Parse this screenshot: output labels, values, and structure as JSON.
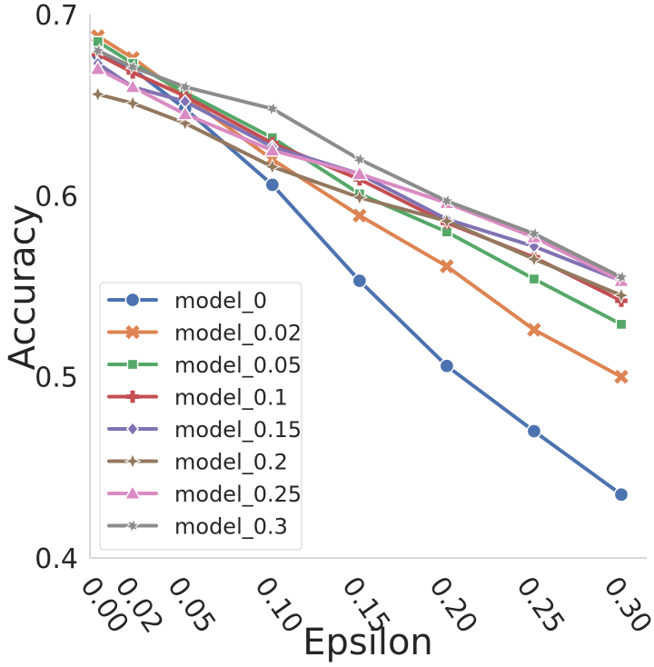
{
  "chart_data": {
    "type": "line",
    "xlabel": "Epsilon",
    "ylabel": "Accuracy",
    "x": [
      0.0,
      0.02,
      0.05,
      0.1,
      0.15,
      0.2,
      0.25,
      0.3
    ],
    "x_tick_labels": [
      "0.00",
      "0.02",
      "0.05",
      "0.10",
      "0.15",
      "0.20",
      "0.25",
      "0.30"
    ],
    "y_ticks": [
      0.4,
      0.5,
      0.6,
      0.7
    ],
    "y_tick_labels": [
      "0.4",
      "0.5",
      "0.6",
      "0.7"
    ],
    "xlim": [
      -0.00456,
      0.3
    ],
    "ylim": [
      0.4,
      0.7
    ],
    "grid": false,
    "legend_position": "lower-left",
    "series": [
      {
        "name": "model_0",
        "color": "#4c72b0",
        "marker": "circle",
        "values": [
          0.678,
          0.67,
          0.648,
          0.606,
          0.553,
          0.506,
          0.47,
          0.435
        ]
      },
      {
        "name": "model_0.02",
        "color": "#dd8452",
        "marker": "x",
        "values": [
          0.688,
          0.676,
          0.655,
          0.62,
          0.589,
          0.561,
          0.526,
          0.5
        ]
      },
      {
        "name": "model_0.05",
        "color": "#55a868",
        "marker": "square",
        "values": [
          0.685,
          0.673,
          0.657,
          0.632,
          0.601,
          0.58,
          0.554,
          0.529
        ]
      },
      {
        "name": "model_0.1",
        "color": "#c44e52",
        "marker": "plus",
        "values": [
          0.678,
          0.668,
          0.655,
          0.629,
          0.609,
          0.585,
          0.566,
          0.542
        ]
      },
      {
        "name": "model_0.15",
        "color": "#8172b3",
        "marker": "diamond",
        "values": [
          0.673,
          0.66,
          0.652,
          0.627,
          0.612,
          0.587,
          0.572,
          0.553
        ]
      },
      {
        "name": "model_0.2",
        "color": "#937860",
        "marker": "star4",
        "values": [
          0.656,
          0.651,
          0.64,
          0.616,
          0.599,
          0.586,
          0.565,
          0.545
        ]
      },
      {
        "name": "model_0.25",
        "color": "#da8bc3",
        "marker": "triangle",
        "values": [
          0.67,
          0.66,
          0.645,
          0.625,
          0.612,
          0.596,
          0.577,
          0.553
        ]
      },
      {
        "name": "model_0.3",
        "color": "#8c8c8c",
        "marker": "star",
        "values": [
          0.68,
          0.671,
          0.66,
          0.648,
          0.62,
          0.597,
          0.579,
          0.555
        ]
      }
    ]
  }
}
